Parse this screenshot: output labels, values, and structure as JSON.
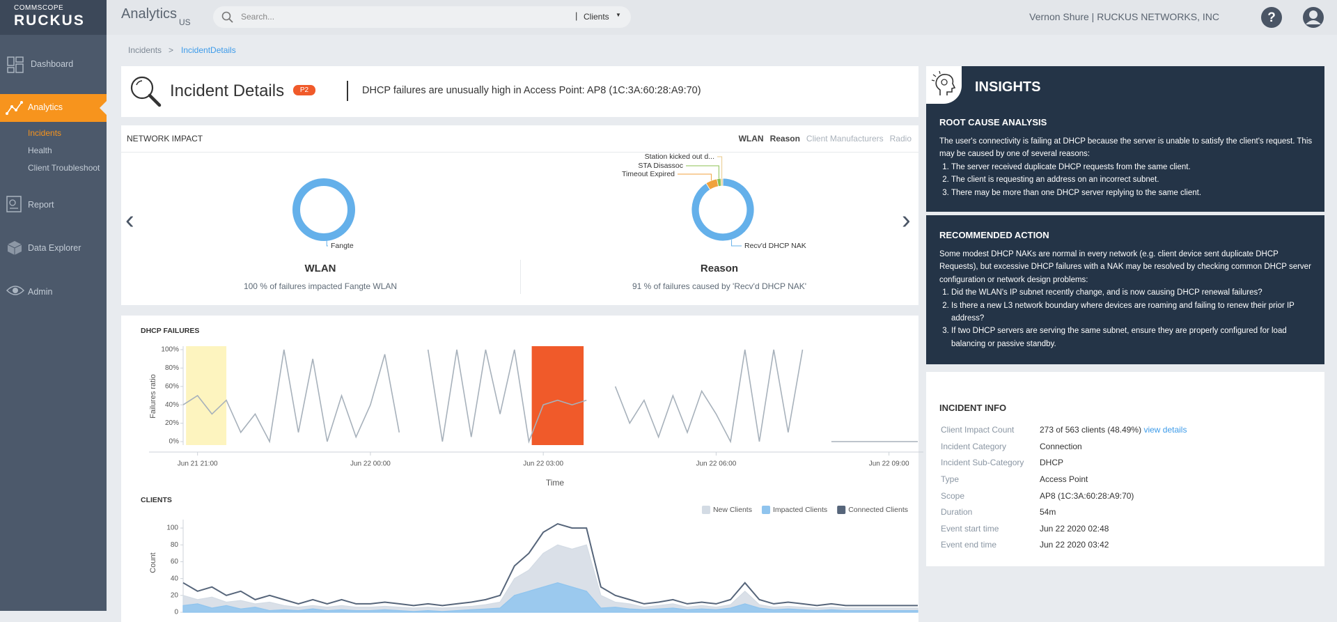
{
  "header": {
    "brand_top": "COMMSCOPE",
    "brand": "RUCKUS",
    "app": "Analytics",
    "region": "US",
    "search_placeholder": "Search...",
    "search_scope": "Clients",
    "user": "Vernon Shure | RUCKUS NETWORKS, INC"
  },
  "sidebar": {
    "items": [
      "Dashboard",
      "Analytics",
      "Report",
      "Data Explorer",
      "Admin"
    ],
    "subitems": [
      "Incidents",
      "Health",
      "Client Troubleshoot"
    ]
  },
  "breadcrumb": [
    "Incidents",
    "IncidentDetails"
  ],
  "incident": {
    "title": "Incident Details",
    "priority": "P2",
    "summary": "DHCP failures are unusually high in Access Point: AP8 (1C:3A:60:28:A9:70)"
  },
  "network_impact": {
    "title": "NETWORK IMPACT",
    "tabs": [
      "WLAN",
      "Reason",
      "Client Manufacturers",
      "Radio"
    ]
  },
  "chart_data": [
    {
      "type": "pie",
      "title": "WLAN",
      "subtitle": "100 % of failures impacted Fangte WLAN",
      "categories": [
        "Fangte"
      ],
      "values": [
        100
      ],
      "colors": [
        "#64b0ea"
      ]
    },
    {
      "type": "pie",
      "title": "Reason",
      "subtitle": "91 % of failures caused by 'Recv'd DHCP NAK'",
      "categories": [
        "Recv'd DHCP NAK",
        "Timeout Expired",
        "STA Disassoc",
        "Station kicked out d..."
      ],
      "values": [
        91,
        6,
        2,
        1
      ],
      "colors": [
        "#64b0ea",
        "#f0a23c",
        "#8cc152",
        "#e8c98a"
      ]
    },
    {
      "type": "line",
      "title": "DHCP FAILURES",
      "x_label": "Time",
      "y_label": "Failures ratio",
      "color": "#a7b1bb",
      "x": [
        "Jun 21 20:45",
        "Jun 21 21:00",
        "Jun 21 21:15",
        "Jun 21 21:30",
        "Jun 21 21:45",
        "Jun 21 22:00",
        "Jun 21 22:15",
        "Jun 21 22:30",
        "Jun 21 22:45",
        "Jun 21 23:00",
        "Jun 21 23:15",
        "Jun 21 23:30",
        "Jun 21 23:45",
        "Jun 22 00:00",
        "Jun 22 00:15",
        "Jun 22 00:30",
        "Jun 22 00:45",
        "Jun 22 01:00",
        "Jun 22 01:15",
        "Jun 22 01:30",
        "Jun 22 01:45",
        "Jun 22 02:00",
        "Jun 22 02:15",
        "Jun 22 02:30",
        "Jun 22 02:45",
        "Jun 22 03:00",
        "Jun 22 03:15",
        "Jun 22 03:30",
        "Jun 22 03:45",
        "Jun 22 04:00",
        "Jun 22 04:15",
        "Jun 22 04:30",
        "Jun 22 04:45",
        "Jun 22 05:00",
        "Jun 22 05:15",
        "Jun 22 05:30",
        "Jun 22 05:45",
        "Jun 22 06:00",
        "Jun 22 06:15",
        "Jun 22 06:30",
        "Jun 22 06:45",
        "Jun 22 07:00",
        "Jun 22 07:15",
        "Jun 22 07:30",
        "Jun 22 07:45",
        "Jun 22 08:00",
        "Jun 22 08:15",
        "Jun 22 08:30",
        "Jun 22 08:45",
        "Jun 22 09:00",
        "Jun 22 09:15",
        "Jun 22 09:30"
      ],
      "values": [
        40,
        50,
        30,
        45,
        10,
        30,
        0,
        100,
        10,
        90,
        0,
        50,
        5,
        40,
        95,
        10,
        null,
        100,
        0,
        100,
        5,
        100,
        30,
        100,
        0,
        40,
        45,
        40,
        45,
        null,
        60,
        20,
        45,
        5,
        50,
        10,
        55,
        30,
        0,
        100,
        0,
        100,
        10,
        100,
        null,
        0,
        0,
        0,
        0,
        0,
        0,
        0
      ],
      "xlim": [
        "Jun 21 20:45",
        "Jun 22 09:30"
      ],
      "xticks": [
        "Jun 21 21:00",
        "Jun 22 00:00",
        "Jun 22 03:00",
        "Jun 22 06:00",
        "Jun 22 09:00"
      ],
      "ylim": [
        0,
        100
      ],
      "yticks": [
        {
          "value": 0,
          "label": "0%"
        },
        {
          "value": 20,
          "label": "20%"
        },
        {
          "value": 40,
          "label": "40%"
        },
        {
          "value": 60,
          "label": "60%"
        },
        {
          "value": 80,
          "label": "80%"
        },
        {
          "value": 100,
          "label": "100%"
        }
      ],
      "highlights": [
        {
          "start": "Jun 21 20:48",
          "end": "Jun 21 21:30",
          "color": "#fdf4bf"
        },
        {
          "start": "Jun 22 02:48",
          "end": "Jun 22 03:42",
          "color": "#f05a2a"
        }
      ]
    },
    {
      "type": "area",
      "title": "CLIENTS",
      "y_label": "Count",
      "legend": "top-right",
      "x": [
        "Jun 21 20:45",
        "Jun 21 21:00",
        "Jun 21 21:15",
        "Jun 21 21:30",
        "Jun 21 21:45",
        "Jun 21 22:00",
        "Jun 21 22:15",
        "Jun 21 22:30",
        "Jun 21 22:45",
        "Jun 21 23:00",
        "Jun 21 23:15",
        "Jun 21 23:30",
        "Jun 21 23:45",
        "Jun 22 00:00",
        "Jun 22 00:15",
        "Jun 22 00:30",
        "Jun 22 00:45",
        "Jun 22 01:00",
        "Jun 22 01:15",
        "Jun 22 01:30",
        "Jun 22 01:45",
        "Jun 22 02:00",
        "Jun 22 02:15",
        "Jun 22 02:30",
        "Jun 22 02:45",
        "Jun 22 03:00",
        "Jun 22 03:15",
        "Jun 22 03:30",
        "Jun 22 03:45",
        "Jun 22 04:00",
        "Jun 22 04:15",
        "Jun 22 04:30",
        "Jun 22 04:45",
        "Jun 22 05:00",
        "Jun 22 05:15",
        "Jun 22 05:30",
        "Jun 22 05:45",
        "Jun 22 06:00",
        "Jun 22 06:15",
        "Jun 22 06:30",
        "Jun 22 06:45",
        "Jun 22 07:00",
        "Jun 22 07:15",
        "Jun 22 07:30",
        "Jun 22 07:45",
        "Jun 22 08:00",
        "Jun 22 08:15",
        "Jun 22 08:30",
        "Jun 22 08:45",
        "Jun 22 09:00",
        "Jun 22 09:15",
        "Jun 22 09:30"
      ],
      "xlim": [
        "Jun 21 20:45",
        "Jun 22 09:30"
      ],
      "ylim": [
        0,
        110
      ],
      "yticks": [
        0,
        20,
        40,
        60,
        80,
        100
      ],
      "series": [
        {
          "name": "New Clients",
          "color": "#d3dbe4",
          "values": [
            20,
            15,
            18,
            12,
            14,
            10,
            12,
            8,
            6,
            8,
            6,
            8,
            6,
            6,
            7,
            6,
            5,
            6,
            5,
            6,
            7,
            9,
            12,
            40,
            50,
            70,
            80,
            75,
            80,
            20,
            12,
            10,
            6,
            8,
            10,
            6,
            8,
            6,
            9,
            25,
            9,
            6,
            7,
            6,
            5,
            6,
            5,
            5,
            5,
            5,
            5,
            5
          ]
        },
        {
          "name": "Impacted Clients",
          "color": "#8fc4ee",
          "values": [
            8,
            10,
            5,
            8,
            4,
            6,
            2,
            3,
            2,
            4,
            2,
            3,
            2,
            2,
            3,
            2,
            1,
            2,
            1,
            2,
            3,
            4,
            5,
            20,
            25,
            30,
            35,
            30,
            25,
            5,
            6,
            4,
            3,
            4,
            5,
            3,
            4,
            3,
            5,
            10,
            5,
            3,
            4,
            3,
            2,
            3,
            2,
            2,
            2,
            2,
            2,
            2
          ]
        },
        {
          "name": "Connected Clients",
          "color": "#56657a",
          "values": [
            35,
            25,
            30,
            20,
            25,
            15,
            20,
            15,
            10,
            15,
            10,
            15,
            10,
            10,
            12,
            10,
            8,
            10,
            8,
            10,
            12,
            15,
            20,
            55,
            70,
            95,
            105,
            100,
            100,
            30,
            20,
            15,
            10,
            12,
            15,
            10,
            12,
            10,
            15,
            35,
            15,
            10,
            12,
            10,
            8,
            10,
            8,
            8,
            8,
            8,
            8,
            8
          ]
        }
      ]
    }
  ],
  "insights": {
    "title": "INSIGHTS",
    "root_cause": {
      "heading": "ROOT CAUSE ANALYSIS",
      "text": "The user's connectivity is failing at DHCP because the server is unable to satisfy the client's request. This may be caused by one of several reasons:",
      "items": [
        "The server received duplicate DHCP requests from the same client.",
        "The client is requesting an address on an incorrect subnet.",
        "There may be more than one DHCP server replying to the same client."
      ]
    },
    "recommended": {
      "heading": "RECOMMENDED ACTION",
      "text": "Some modest DHCP NAKs are normal in every network (e.g. client device sent duplicate DHCP Requests), but excessive DHCP failures with a NAK may be resolved by checking common DHCP server configuration or network design problems:",
      "items": [
        "Did the WLAN's IP subnet recently change, and is now causing DHCP renewal failures?",
        "Is there a new L3 network boundary where devices are roaming and failing to renew their prior IP address?",
        "If two DHCP servers are serving the same subnet, ensure they are properly configured for load balancing or passive standby."
      ]
    }
  },
  "incident_info": {
    "heading": "INCIDENT INFO",
    "link": "view details",
    "rows": [
      [
        "Client Impact Count",
        "273 of 563 clients (48.49%)"
      ],
      [
        "Incident Category",
        "Connection"
      ],
      [
        "Incident Sub-Category",
        "DHCP"
      ],
      [
        "Type",
        "Access Point"
      ],
      [
        "Scope",
        "AP8 (1C:3A:60:28:A9:70)"
      ],
      [
        "Duration",
        "54m"
      ],
      [
        "Event start time",
        "Jun 22 2020 02:48"
      ],
      [
        "Event end time",
        "Jun 22 2020 03:42"
      ]
    ]
  }
}
